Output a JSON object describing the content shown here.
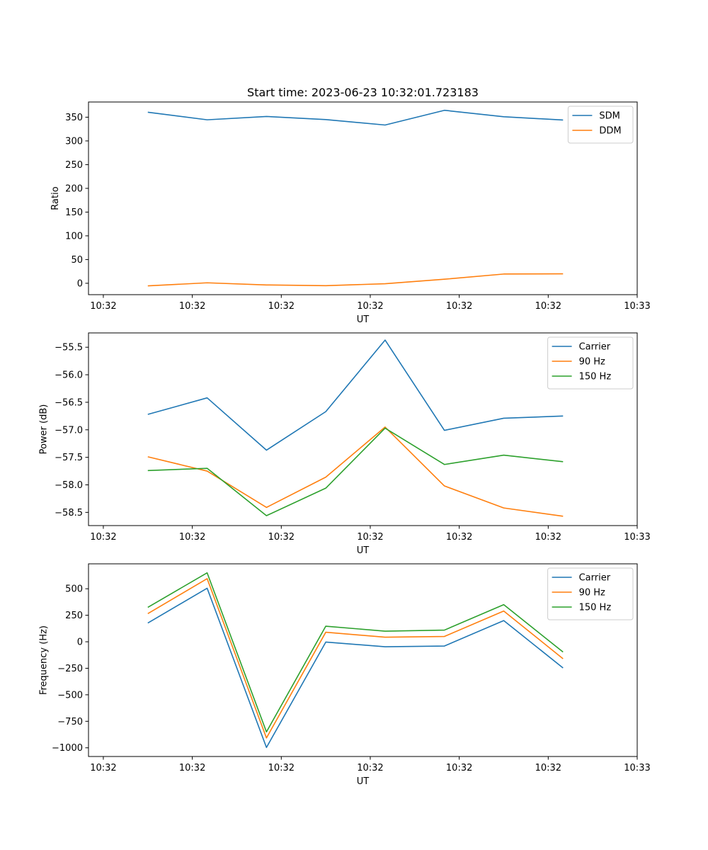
{
  "title": "Start time: 2023-06-23 10:32:01.723183",
  "chart_data": [
    {
      "type": "line",
      "xlabel": "UT",
      "ylabel": "Ratio",
      "x": [
        1,
        2,
        3,
        4,
        5,
        6,
        7,
        8
      ],
      "xlim": [
        0,
        9.25
      ],
      "x_ticks": [
        0.25,
        1.75,
        3.25,
        4.75,
        6.25,
        7.75,
        9.25
      ],
      "x_tick_labels": [
        "10:32",
        "10:32",
        "10:32",
        "10:32",
        "10:32",
        "10:32",
        "10:33"
      ],
      "ylim": [
        -24,
        382
      ],
      "y_ticks": [
        0,
        50,
        100,
        150,
        200,
        250,
        300,
        350
      ],
      "y_tick_labels": [
        "0",
        "50",
        "100",
        "150",
        "200",
        "250",
        "300",
        "350"
      ],
      "legend_position": "upper right",
      "series": [
        {
          "name": "SDM",
          "color": "#1f77b4",
          "values": [
            360.5,
            344.5,
            351.5,
            345.0,
            333.5,
            364.5,
            351.0,
            344.0
          ]
        },
        {
          "name": "DDM",
          "color": "#ff7f0e",
          "values": [
            -5.5,
            1.0,
            -3.5,
            -5.0,
            -1.0,
            8.5,
            19.5,
            20.0
          ]
        }
      ]
    },
    {
      "type": "line",
      "xlabel": "UT",
      "ylabel": "Power (dB)",
      "x": [
        1,
        2,
        3,
        4,
        5,
        6,
        7,
        8
      ],
      "xlim": [
        0,
        9.25
      ],
      "x_ticks": [
        0.25,
        1.75,
        3.25,
        4.75,
        6.25,
        7.75,
        9.25
      ],
      "x_tick_labels": [
        "10:32",
        "10:32",
        "10:32",
        "10:32",
        "10:32",
        "10:32",
        "10:33"
      ],
      "ylim": [
        -58.74,
        -55.24
      ],
      "y_ticks": [
        -58.5,
        -58.0,
        -57.5,
        -57.0,
        -56.5,
        -56.0,
        -55.5
      ],
      "y_tick_labels": [
        "−58.5",
        "−58.0",
        "−57.5",
        "−57.0",
        "−56.5",
        "−56.0",
        "−55.5"
      ],
      "legend_position": "upper right",
      "series": [
        {
          "name": "Carrier",
          "color": "#1f77b4",
          "values": [
            -56.72,
            -56.42,
            -57.37,
            -56.67,
            -55.37,
            -57.01,
            -56.79,
            -56.75
          ]
        },
        {
          "name": "90 Hz",
          "color": "#ff7f0e",
          "values": [
            -57.49,
            -57.75,
            -58.41,
            -57.86,
            -56.95,
            -58.02,
            -58.42,
            -58.57
          ]
        },
        {
          "name": "150 Hz",
          "color": "#2ca02c",
          "values": [
            -57.74,
            -57.7,
            -58.56,
            -58.06,
            -56.97,
            -57.63,
            -57.46,
            -57.58
          ]
        }
      ]
    },
    {
      "type": "line",
      "xlabel": "UT",
      "ylabel": "Frequency (Hz)",
      "x": [
        1,
        2,
        3,
        4,
        5,
        6,
        7,
        8
      ],
      "xlim": [
        0,
        9.25
      ],
      "x_ticks": [
        0.25,
        1.75,
        3.25,
        4.75,
        6.25,
        7.75,
        9.25
      ],
      "x_tick_labels": [
        "10:32",
        "10:32",
        "10:32",
        "10:32",
        "10:32",
        "10:32",
        "10:33"
      ],
      "ylim": [
        -1082,
        735
      ],
      "y_ticks": [
        -1000,
        -750,
        -500,
        -250,
        0,
        250,
        500
      ],
      "y_tick_labels": [
        "−1000",
        "−750",
        "−500",
        "−250",
        "0",
        "250",
        "500"
      ],
      "legend_position": "upper right",
      "series": [
        {
          "name": "Carrier",
          "color": "#1f77b4",
          "values": [
            177,
            505,
            -997,
            -3,
            -47,
            -40,
            200,
            -247
          ]
        },
        {
          "name": "90 Hz",
          "color": "#ff7f0e",
          "values": [
            265,
            595,
            -907,
            90,
            43,
            50,
            290,
            -160
          ]
        },
        {
          "name": "150 Hz",
          "color": "#2ca02c",
          "values": [
            325,
            650,
            -850,
            147,
            100,
            110,
            350,
            -97
          ]
        }
      ]
    }
  ]
}
